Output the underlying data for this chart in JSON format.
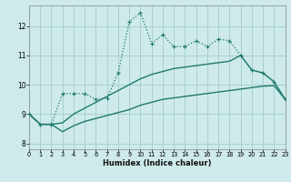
{
  "xlabel": "Humidex (Indice chaleur)",
  "bg_color": "#ceeaea",
  "grid_color": "#a8d0d0",
  "line_color": "#1e7a6e",
  "x_values": [
    0,
    1,
    2,
    3,
    4,
    5,
    6,
    7,
    8,
    9,
    10,
    11,
    12,
    13,
    14,
    15,
    16,
    17,
    18,
    19,
    20,
    21,
    22,
    23
  ],
  "series1": [
    9.0,
    8.65,
    8.65,
    9.7,
    9.7,
    9.7,
    9.5,
    9.55,
    10.4,
    12.15,
    12.45,
    11.4,
    11.7,
    11.3,
    11.3,
    11.5,
    11.3,
    11.55,
    11.5,
    11.0,
    10.5,
    10.4,
    10.1,
    9.5
  ],
  "series2": [
    9.0,
    8.65,
    8.65,
    8.7,
    9.0,
    9.2,
    9.4,
    9.6,
    9.8,
    10.0,
    10.2,
    10.35,
    10.45,
    10.55,
    10.6,
    10.65,
    10.7,
    10.75,
    10.8,
    11.0,
    10.5,
    10.4,
    10.1,
    9.5
  ],
  "series3": [
    9.0,
    8.65,
    8.65,
    8.4,
    8.6,
    8.75,
    8.85,
    8.95,
    9.05,
    9.15,
    9.3,
    9.4,
    9.5,
    9.55,
    9.6,
    9.65,
    9.7,
    9.75,
    9.8,
    9.85,
    9.9,
    9.95,
    9.97,
    9.5
  ],
  "ylim": [
    7.8,
    12.7
  ],
  "xlim": [
    0,
    23
  ]
}
